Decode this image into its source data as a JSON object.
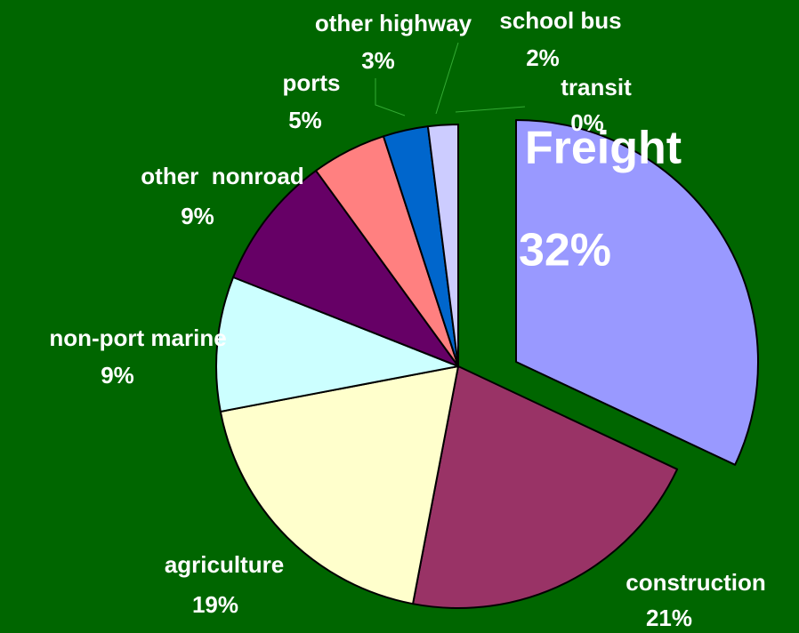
{
  "chart_data": {
    "type": "pie",
    "categories": [
      "Freight",
      "construction",
      "agriculture",
      "non-port marine",
      "other  nonroad",
      "ports",
      "other highway",
      "school bus",
      "transit"
    ],
    "values": [
      32,
      21,
      19,
      9,
      9,
      5,
      3,
      2,
      0
    ],
    "value_labels": [
      "32%",
      "21%",
      "19%",
      "9%",
      "9%",
      "5%",
      "3%",
      "2%",
      "0%"
    ],
    "colors": [
      "#9999ff",
      "#993366",
      "#ffffcc",
      "#ccffff",
      "#660066",
      "#ff8080",
      "#0066cc",
      "#ccccff",
      "#000080"
    ]
  }
}
